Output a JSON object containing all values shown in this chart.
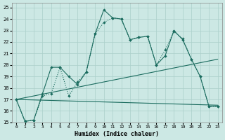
{
  "xlabel": "Humidex (Indice chaleur)",
  "bg_color": "#cce8e4",
  "line_color": "#1a6b5e",
  "grid_color": "#aacfca",
  "xlim": [
    -0.5,
    23.5
  ],
  "ylim": [
    15,
    25.4
  ],
  "yticks": [
    15,
    16,
    17,
    18,
    19,
    20,
    21,
    22,
    23,
    24,
    25
  ],
  "xticks": [
    0,
    1,
    2,
    3,
    4,
    5,
    6,
    7,
    8,
    9,
    10,
    11,
    12,
    13,
    14,
    15,
    16,
    17,
    18,
    19,
    20,
    21,
    22,
    23
  ],
  "line1_x": [
    0,
    1,
    2,
    3,
    4,
    5,
    6,
    7,
    8,
    9,
    10,
    11,
    12,
    13,
    14,
    15,
    16,
    17,
    18,
    19,
    20,
    21,
    22,
    23
  ],
  "line1_y": [
    17.0,
    15.1,
    15.2,
    17.5,
    19.8,
    19.8,
    19.0,
    18.3,
    19.4,
    22.7,
    24.8,
    24.1,
    24.0,
    22.2,
    22.4,
    22.5,
    20.0,
    20.8,
    23.0,
    22.2,
    20.5,
    19.0,
    16.4,
    16.4
  ],
  "line2_x": [
    0,
    1,
    2,
    3,
    4,
    5,
    6,
    7,
    8,
    9,
    10,
    11,
    12,
    13,
    14,
    15,
    16,
    17,
    18,
    19,
    20,
    21,
    22,
    23
  ],
  "line2_y": [
    17.0,
    15.1,
    15.2,
    17.3,
    17.5,
    19.8,
    17.3,
    18.5,
    19.4,
    22.7,
    23.7,
    24.1,
    24.0,
    22.2,
    22.4,
    22.5,
    20.0,
    21.3,
    22.9,
    22.3,
    20.5,
    19.0,
    16.4,
    16.4
  ],
  "line3_x": [
    0,
    23
  ],
  "line3_y": [
    17.0,
    20.5
  ],
  "line4_x": [
    0,
    23
  ],
  "line4_y": [
    17.0,
    16.5
  ]
}
